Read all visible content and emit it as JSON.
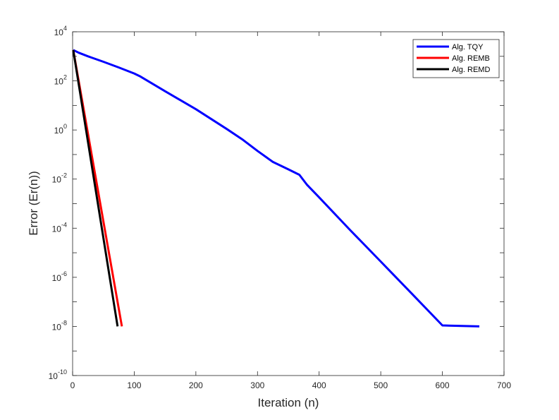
{
  "chart_data": {
    "type": "line",
    "title": "",
    "xlabel": "Iteration (n)",
    "ylabel": "Error (Er(n))",
    "xlim": [
      0,
      700
    ],
    "ylim": [
      1e-10,
      10000
    ],
    "yscale": "log",
    "x_ticks": [
      "0",
      "100",
      "200",
      "300",
      "400",
      "500",
      "600",
      "700"
    ],
    "y_ticks": [
      {
        "base": "10",
        "exp": "4"
      },
      {
        "base": "10",
        "exp": "2"
      },
      {
        "base": "10",
        "exp": "0"
      },
      {
        "base": "10",
        "exp": "-2"
      },
      {
        "base": "10",
        "exp": "-4"
      },
      {
        "base": "10",
        "exp": "-6"
      },
      {
        "base": "10",
        "exp": "-8"
      },
      {
        "base": "10",
        "exp": "-10"
      }
    ],
    "grid": false,
    "legend_position": "top-right",
    "series": [
      {
        "name": "Alg. TQY",
        "color": "#0000ff",
        "x": [
          1,
          10,
          25,
          50,
          75,
          100,
          110,
          150,
          200,
          250,
          275,
          300,
          325,
          350,
          368,
          380,
          400,
          450,
          500,
          550,
          600,
          660
        ],
        "y": [
          1800,
          1400,
          1000,
          600,
          350,
          200,
          150,
          38,
          7,
          1.1,
          0.42,
          0.14,
          0.05,
          0.025,
          0.015,
          0.006,
          0.0018,
          8.6e-05,
          4.4e-06,
          2.2e-07,
          1.1e-08,
          1e-08
        ]
      },
      {
        "name": "Alg. REMB",
        "color": "#ff0000",
        "x": [
          1,
          80
        ],
        "y": [
          1800,
          1e-08
        ]
      },
      {
        "name": "Alg. REMD",
        "color": "#000000",
        "x": [
          1,
          73
        ],
        "y": [
          1800,
          1e-08
        ]
      }
    ]
  }
}
